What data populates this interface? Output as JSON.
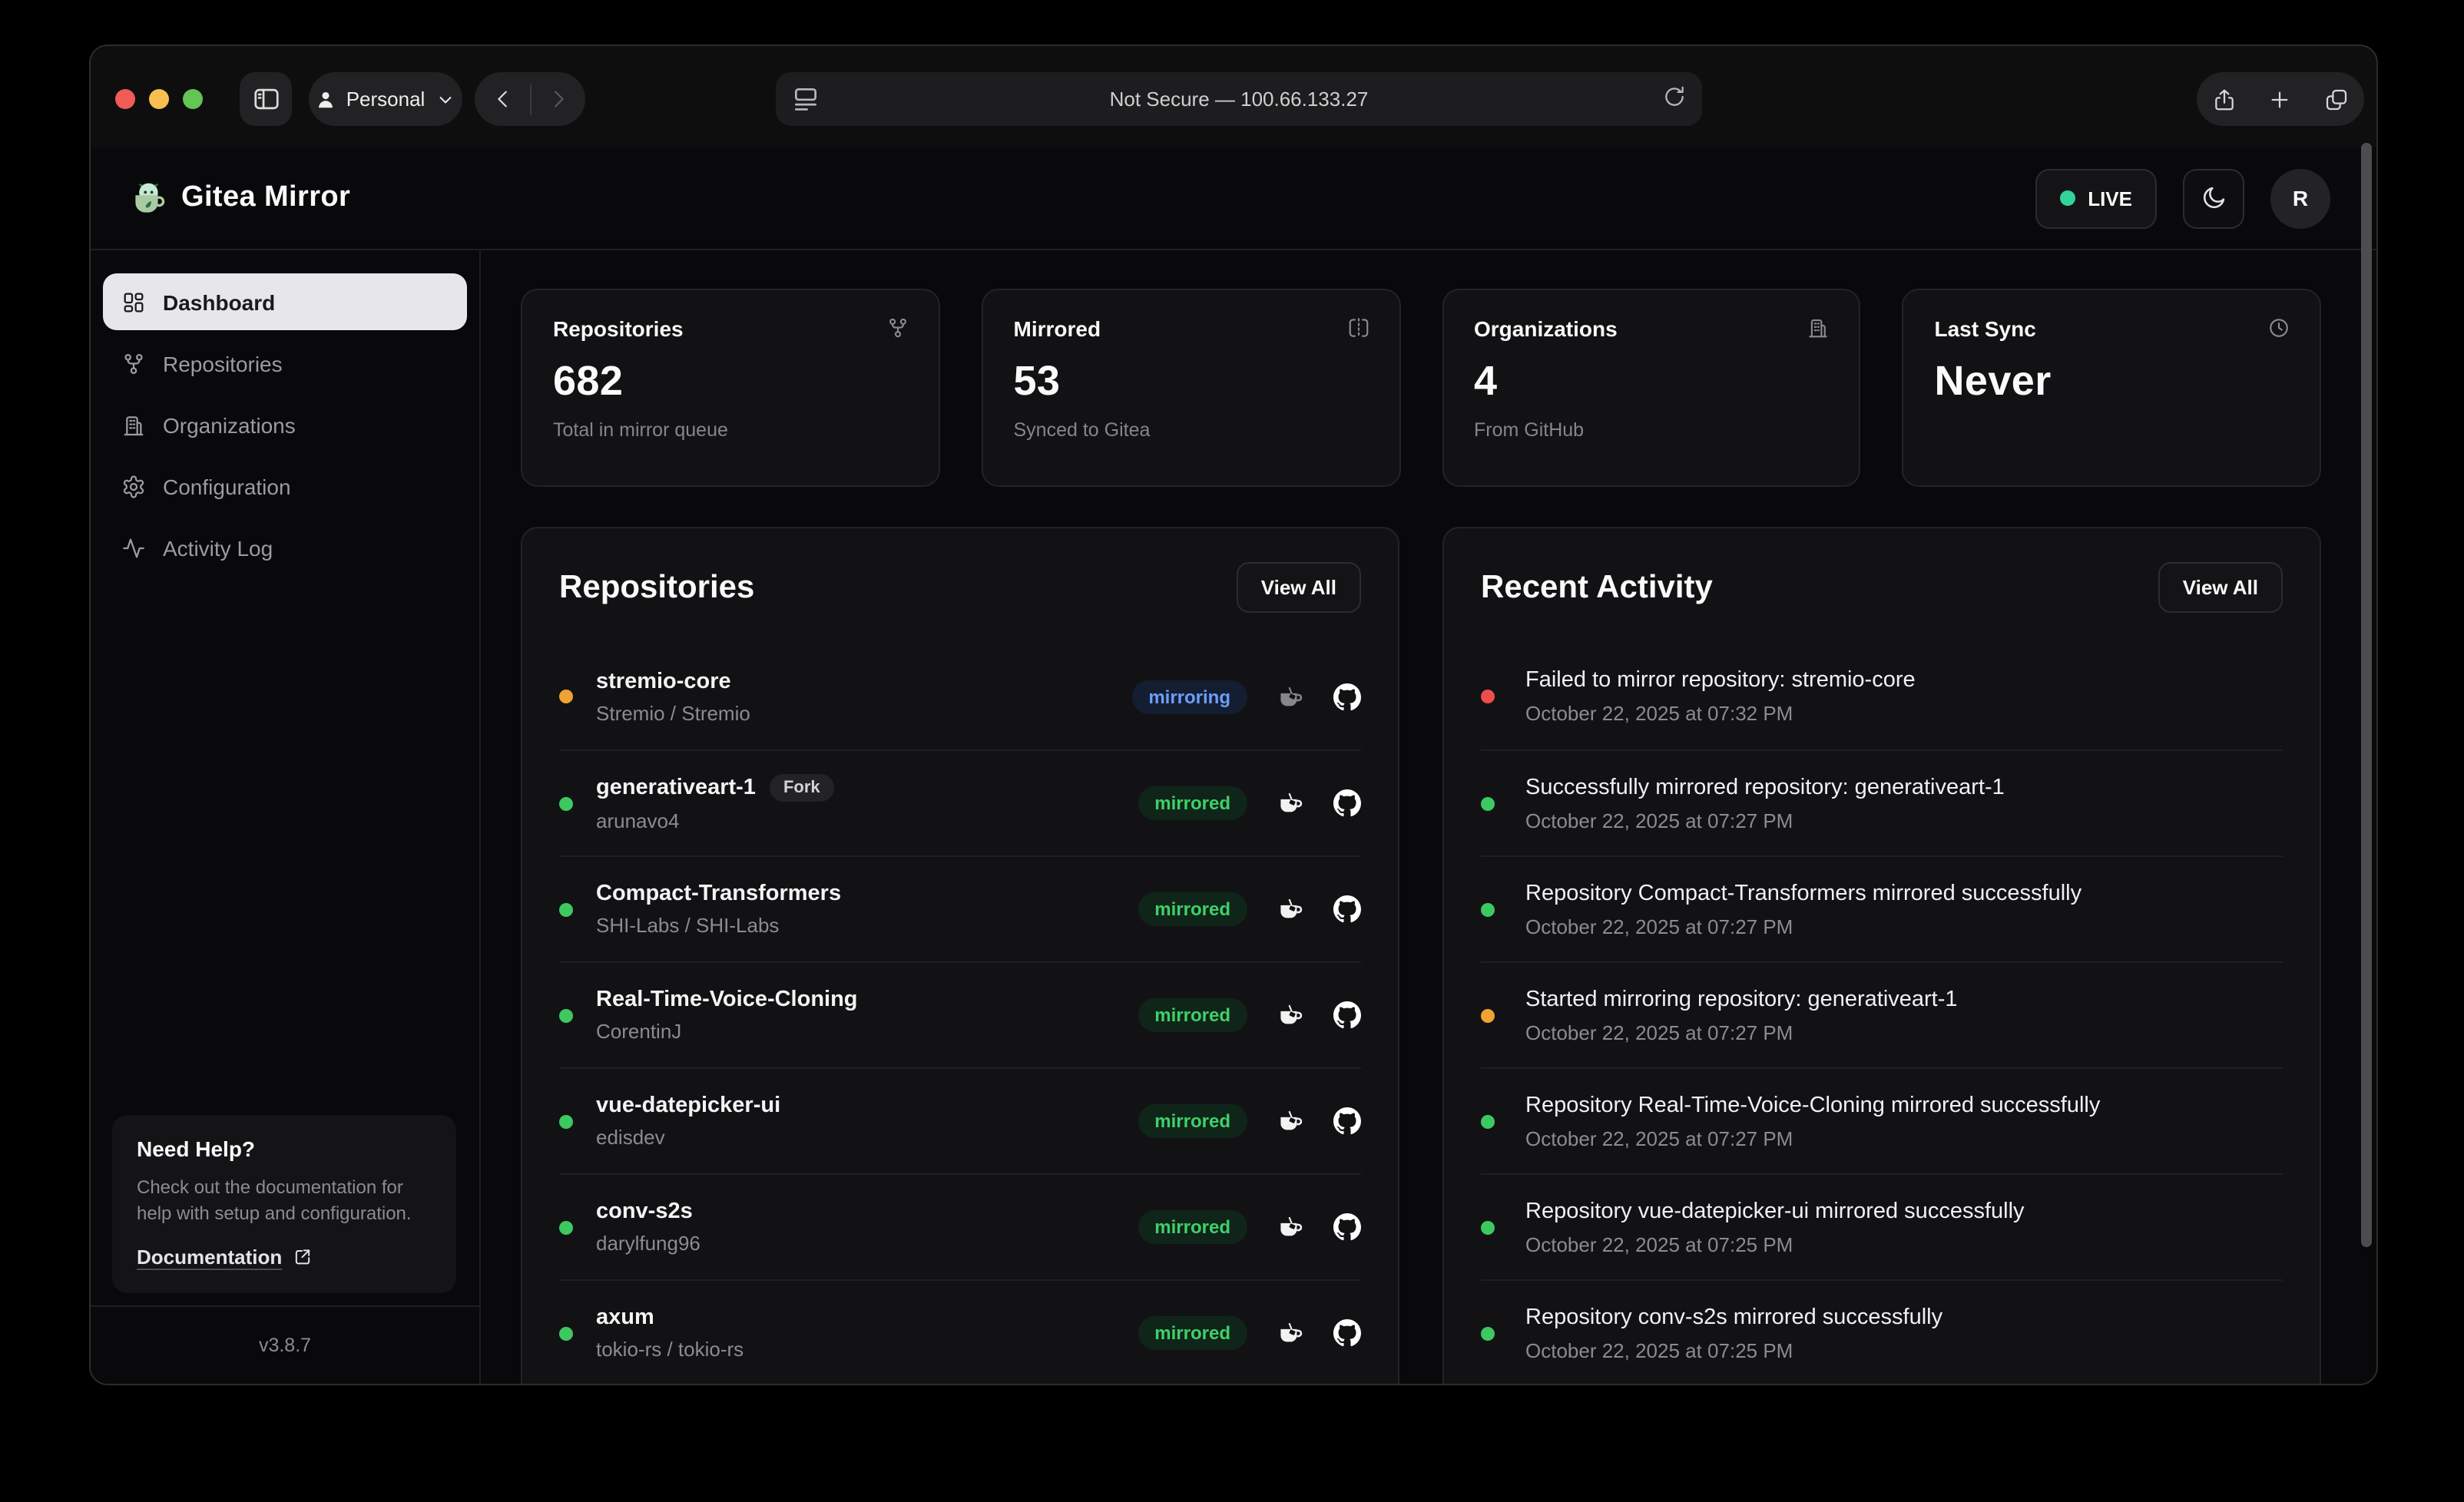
{
  "browser": {
    "profile": {
      "label": "Personal"
    },
    "address": {
      "text": "Not Secure — 100.66.133.27"
    }
  },
  "header": {
    "app_title": "Gitea Mirror",
    "live_label": "LIVE",
    "avatar_initial": "R"
  },
  "sidebar": {
    "items": [
      {
        "label": "Dashboard",
        "icon": "dashboard",
        "active": true
      },
      {
        "label": "Repositories",
        "icon": "git-branch",
        "active": false
      },
      {
        "label": "Organizations",
        "icon": "building",
        "active": false
      },
      {
        "label": "Configuration",
        "icon": "settings",
        "active": false
      },
      {
        "label": "Activity Log",
        "icon": "activity",
        "active": false
      }
    ],
    "help": {
      "title": "Need Help?",
      "body": "Check out the documentation for help with setup and configuration.",
      "link_label": "Documentation"
    },
    "version": "v3.8.7"
  },
  "stats": [
    {
      "label": "Repositories",
      "value": "682",
      "sub": "Total in mirror queue",
      "icon": "git-branch"
    },
    {
      "label": "Mirrored",
      "value": "53",
      "sub": "Synced to Gitea",
      "icon": "mirror"
    },
    {
      "label": "Organizations",
      "value": "4",
      "sub": "From GitHub",
      "icon": "building"
    },
    {
      "label": "Last Sync",
      "value": "Never",
      "sub": "",
      "icon": "clock"
    }
  ],
  "repositories_panel": {
    "title": "Repositories",
    "view_all_label": "View All",
    "rows": [
      {
        "name": "stremio-core",
        "owner": "Stremio / Stremio",
        "status": "mirroring",
        "dot": "amber",
        "fork": false,
        "fork_label": ""
      },
      {
        "name": "generativeart-1",
        "owner": "arunavo4",
        "status": "mirrored",
        "dot": "green",
        "fork": true,
        "fork_label": "Fork"
      },
      {
        "name": "Compact-Transformers",
        "owner": "SHI-Labs / SHI-Labs",
        "status": "mirrored",
        "dot": "green",
        "fork": false,
        "fork_label": ""
      },
      {
        "name": "Real-Time-Voice-Cloning",
        "owner": "CorentinJ",
        "status": "mirrored",
        "dot": "green",
        "fork": false,
        "fork_label": ""
      },
      {
        "name": "vue-datepicker-ui",
        "owner": "edisdev",
        "status": "mirrored",
        "dot": "green",
        "fork": false,
        "fork_label": ""
      },
      {
        "name": "conv-s2s",
        "owner": "darylfung96",
        "status": "mirrored",
        "dot": "green",
        "fork": false,
        "fork_label": ""
      },
      {
        "name": "axum",
        "owner": "tokio-rs / tokio-rs",
        "status": "mirrored",
        "dot": "green",
        "fork": false,
        "fork_label": ""
      }
    ]
  },
  "activity_panel": {
    "title": "Recent Activity",
    "view_all_label": "View All",
    "rows": [
      {
        "text": "Failed to mirror repository: stremio-core",
        "time": "October 22, 2025 at 07:32 PM",
        "dot": "red"
      },
      {
        "text": "Successfully mirrored repository: generativeart-1",
        "time": "October 22, 2025 at 07:27 PM",
        "dot": "green"
      },
      {
        "text": "Repository Compact-Transformers mirrored successfully",
        "time": "October 22, 2025 at 07:27 PM",
        "dot": "green"
      },
      {
        "text": "Started mirroring repository: generativeart-1",
        "time": "October 22, 2025 at 07:27 PM",
        "dot": "amber"
      },
      {
        "text": "Repository Real-Time-Voice-Cloning mirrored successfully",
        "time": "October 22, 2025 at 07:27 PM",
        "dot": "green"
      },
      {
        "text": "Repository vue-datepicker-ui mirrored successfully",
        "time": "October 22, 2025 at 07:25 PM",
        "dot": "green"
      },
      {
        "text": "Repository conv-s2s mirrored successfully",
        "time": "October 22, 2025 at 07:25 PM",
        "dot": "green"
      }
    ]
  },
  "colors": {
    "status_green": "#3dc95f",
    "status_amber": "#f0a232",
    "status_red": "#ef4d4d",
    "live_green": "#34d399",
    "badge_blue_text": "#6b9efb",
    "badge_blue_bg": "#151d33",
    "badge_green_text": "#3fd068",
    "badge_green_bg": "#10251a"
  }
}
